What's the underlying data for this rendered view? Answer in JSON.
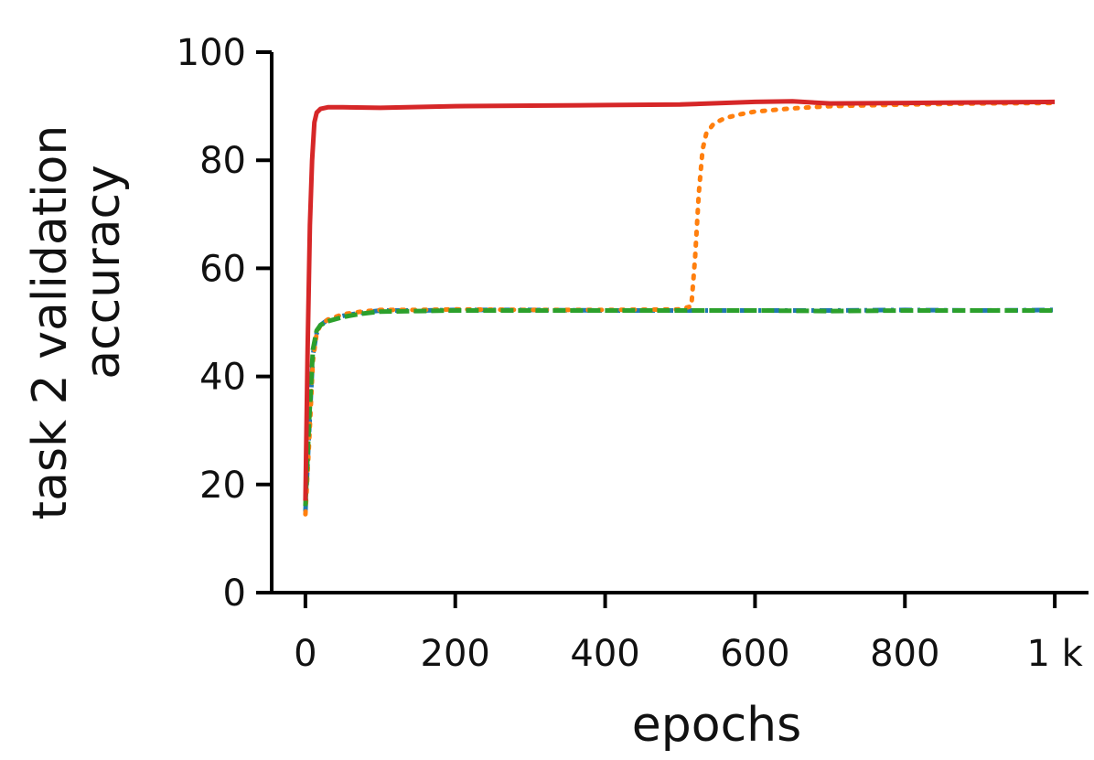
{
  "chart_data": {
    "type": "line",
    "title": "",
    "xlabel": "epochs",
    "ylabel_lines": [
      "task 2  validation",
      "accuracy"
    ],
    "xlim": [
      -45,
      1045
    ],
    "ylim": [
      0,
      100
    ],
    "x_ticks": [
      0,
      200,
      400,
      600,
      800,
      1000
    ],
    "x_tick_labels": [
      "0",
      "200",
      "400",
      "600",
      "800",
      "1 k"
    ],
    "y_ticks": [
      0,
      20,
      40,
      60,
      80,
      100
    ],
    "y_tick_labels": [
      "0",
      "20",
      "40",
      "60",
      "80",
      "100"
    ],
    "grid": false,
    "legend": "none",
    "series": [
      {
        "color": "#1f77b4",
        "style": "dashdot",
        "x": [
          0,
          5,
          10,
          15,
          20,
          30,
          50,
          75,
          100,
          150,
          200,
          300,
          400,
          500,
          600,
          700,
          800,
          900,
          1000
        ],
        "y": [
          15,
          30,
          44,
          48,
          49.5,
          50.5,
          51.2,
          51.8,
          52.2,
          52.2,
          52.3,
          52.3,
          52.2,
          52.2,
          52.2,
          52.2,
          52.3,
          52.2,
          52.3
        ]
      },
      {
        "color": "#ff7f0e",
        "style": "dotted",
        "x": [
          0,
          5,
          10,
          15,
          20,
          30,
          50,
          75,
          100,
          150,
          200,
          300,
          400,
          500,
          515,
          520,
          525,
          530,
          535,
          545,
          560,
          580,
          600,
          650,
          700,
          800,
          900,
          1000
        ],
        "y": [
          14.5,
          28,
          43,
          48,
          49.5,
          50.5,
          51.5,
          52,
          52.3,
          52.3,
          52.4,
          52.3,
          52.3,
          52.4,
          53,
          62,
          74,
          82,
          85,
          86.8,
          87.8,
          88.5,
          89,
          89.6,
          90,
          90.3,
          90.5,
          90.6
        ]
      },
      {
        "color": "#2ca02c",
        "style": "dashed",
        "x": [
          0,
          5,
          10,
          15,
          20,
          30,
          50,
          75,
          100,
          150,
          200,
          300,
          400,
          500,
          600,
          700,
          800,
          900,
          1000
        ],
        "y": [
          16,
          32,
          45,
          48.5,
          49.5,
          50.2,
          51,
          51.6,
          52,
          52.1,
          52.2,
          52.2,
          52.2,
          52.2,
          52.2,
          52.1,
          52.2,
          52.2,
          52.2
        ]
      },
      {
        "color": "#d62728",
        "style": "solid",
        "x": [
          0,
          3,
          6,
          9,
          12,
          15,
          20,
          30,
          50,
          100,
          200,
          300,
          400,
          500,
          600,
          650,
          700,
          800,
          900,
          1000
        ],
        "y": [
          17,
          45,
          68,
          80,
          87,
          88.8,
          89.5,
          89.8,
          89.8,
          89.7,
          90,
          90.1,
          90.2,
          90.3,
          90.8,
          90.9,
          90.5,
          90.6,
          90.7,
          90.8
        ]
      }
    ]
  }
}
